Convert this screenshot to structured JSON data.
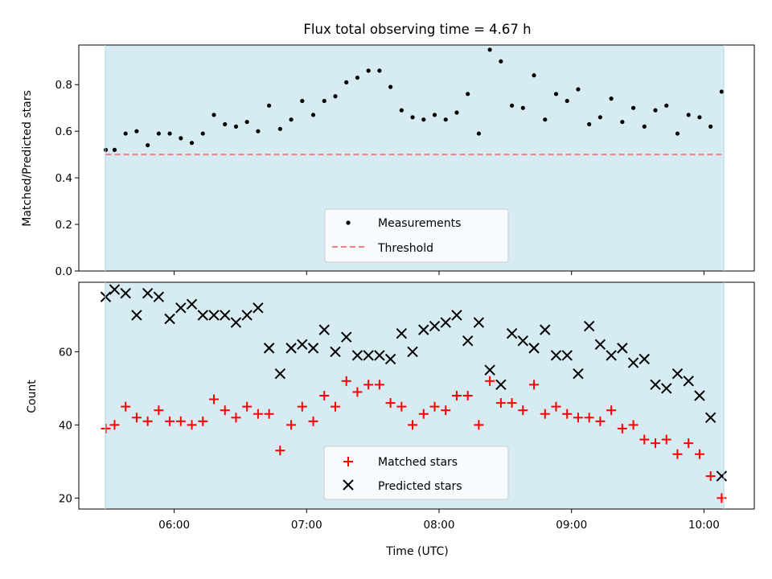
{
  "chart_data": [
    {
      "type": "scatter",
      "title": "Flux total observing time = 4.67 h",
      "ylabel": "Matched/Predicted stars",
      "xlabel": "",
      "ylim": [
        0,
        0.97
      ],
      "yticks": [
        0.0,
        0.2,
        0.4,
        0.6,
        0.8
      ],
      "ytick_labels": [
        "0.0",
        "0.2",
        "0.4",
        "0.6",
        "0.8"
      ],
      "x_is_time": true,
      "xlim_hours": [
        5.28,
        10.38
      ],
      "shaded_span_hours": [
        5.48,
        10.15
      ],
      "shade_color": "#add8e6",
      "legend_position": "lower center",
      "series": [
        {
          "name": "Measurements",
          "marker": "dot",
          "color": "#000000",
          "x": [
            "05:29",
            "05:33",
            "05:38",
            "05:43",
            "05:48",
            "05:53",
            "05:58",
            "06:03",
            "06:08",
            "06:13",
            "06:18",
            "06:23",
            "06:28",
            "06:33",
            "06:38",
            "06:43",
            "06:48",
            "06:53",
            "06:58",
            "07:03",
            "07:08",
            "07:13",
            "07:18",
            "07:23",
            "07:28",
            "07:33",
            "07:38",
            "07:43",
            "07:48",
            "07:53",
            "07:58",
            "08:03",
            "08:08",
            "08:13",
            "08:18",
            "08:23",
            "08:28",
            "08:33",
            "08:38",
            "08:43",
            "08:48",
            "08:53",
            "08:58",
            "09:03",
            "09:08",
            "09:13",
            "09:18",
            "09:23",
            "09:28",
            "09:33",
            "09:38",
            "09:43",
            "09:48",
            "09:53",
            "09:58",
            "10:03",
            "10:08"
          ],
          "y": [
            0.52,
            0.52,
            0.59,
            0.6,
            0.54,
            0.59,
            0.59,
            0.57,
            0.55,
            0.59,
            0.67,
            0.63,
            0.62,
            0.64,
            0.6,
            0.71,
            0.61,
            0.65,
            0.73,
            0.67,
            0.73,
            0.75,
            0.81,
            0.83,
            0.86,
            0.86,
            0.79,
            0.69,
            0.66,
            0.65,
            0.67,
            0.65,
            0.68,
            0.76,
            0.59,
            0.95,
            0.9,
            0.71,
            0.7,
            0.84,
            0.65,
            0.76,
            0.73,
            0.78,
            0.63,
            0.66,
            0.74,
            0.64,
            0.7,
            0.62,
            0.69,
            0.71,
            0.59,
            0.67,
            0.66,
            0.62,
            0.77
          ]
        },
        {
          "name": "Threshold",
          "style": "dashed",
          "color": "#f08080",
          "x": [
            "05:29",
            "10:08"
          ],
          "y": [
            0.5,
            0.5
          ]
        }
      ]
    },
    {
      "type": "scatter",
      "title": "",
      "ylabel": "Count",
      "xlabel": "Time (UTC)",
      "ylim": [
        17,
        79
      ],
      "yticks": [
        20,
        40,
        60
      ],
      "ytick_labels": [
        "20",
        "40",
        "60"
      ],
      "x_is_time": true,
      "xlim_hours": [
        5.28,
        10.38
      ],
      "xticks_hours": [
        6,
        7,
        8,
        9,
        10
      ],
      "xtick_labels": [
        "06:00",
        "07:00",
        "08:00",
        "09:00",
        "10:00"
      ],
      "shaded_span_hours": [
        5.48,
        10.15
      ],
      "shade_color": "#add8e6",
      "legend_position": "lower center",
      "series": [
        {
          "name": "Matched stars",
          "marker": "plus",
          "color": "#ff0000",
          "x": [
            "05:29",
            "05:33",
            "05:38",
            "05:43",
            "05:48",
            "05:53",
            "05:58",
            "06:03",
            "06:08",
            "06:13",
            "06:18",
            "06:23",
            "06:28",
            "06:33",
            "06:38",
            "06:43",
            "06:48",
            "06:53",
            "06:58",
            "07:03",
            "07:08",
            "07:13",
            "07:18",
            "07:23",
            "07:28",
            "07:33",
            "07:38",
            "07:43",
            "07:48",
            "07:53",
            "07:58",
            "08:03",
            "08:08",
            "08:13",
            "08:18",
            "08:23",
            "08:28",
            "08:33",
            "08:38",
            "08:43",
            "08:48",
            "08:53",
            "08:58",
            "09:03",
            "09:08",
            "09:13",
            "09:18",
            "09:23",
            "09:28",
            "09:33",
            "09:38",
            "09:43",
            "09:48",
            "09:53",
            "09:58",
            "10:03",
            "10:08"
          ],
          "y": [
            39,
            40,
            45,
            42,
            41,
            44,
            41,
            41,
            40,
            41,
            47,
            44,
            42,
            45,
            43,
            43,
            33,
            40,
            45,
            41,
            48,
            45,
            52,
            49,
            51,
            51,
            46,
            45,
            40,
            43,
            45,
            44,
            48,
            48,
            40,
            52,
            46,
            46,
            44,
            51,
            43,
            45,
            43,
            42,
            42,
            41,
            44,
            39,
            40,
            36,
            35,
            36,
            32,
            35,
            32,
            26,
            20
          ]
        },
        {
          "name": "Predicted stars",
          "marker": "x",
          "color": "#000000",
          "x": [
            "05:29",
            "05:33",
            "05:38",
            "05:43",
            "05:48",
            "05:53",
            "05:58",
            "06:03",
            "06:08",
            "06:13",
            "06:18",
            "06:23",
            "06:28",
            "06:33",
            "06:38",
            "06:43",
            "06:48",
            "06:53",
            "06:58",
            "07:03",
            "07:08",
            "07:13",
            "07:18",
            "07:23",
            "07:28",
            "07:33",
            "07:38",
            "07:43",
            "07:48",
            "07:53",
            "07:58",
            "08:03",
            "08:08",
            "08:13",
            "08:18",
            "08:23",
            "08:28",
            "08:33",
            "08:38",
            "08:43",
            "08:48",
            "08:53",
            "08:58",
            "09:03",
            "09:08",
            "09:13",
            "09:18",
            "09:23",
            "09:28",
            "09:33",
            "09:38",
            "09:43",
            "09:48",
            "09:53",
            "09:58",
            "10:03",
            "10:08"
          ],
          "y": [
            75,
            77,
            76,
            70,
            76,
            75,
            69,
            72,
            73,
            70,
            70,
            70,
            68,
            70,
            72,
            61,
            54,
            61,
            62,
            61,
            66,
            60,
            64,
            59,
            59,
            59,
            58,
            65,
            60,
            66,
            67,
            68,
            70,
            63,
            68,
            55,
            51,
            65,
            63,
            61,
            66,
            59,
            59,
            54,
            67,
            62,
            59,
            61,
            57,
            58,
            51,
            50,
            54,
            52,
            48,
            42,
            26
          ]
        }
      ]
    }
  ]
}
